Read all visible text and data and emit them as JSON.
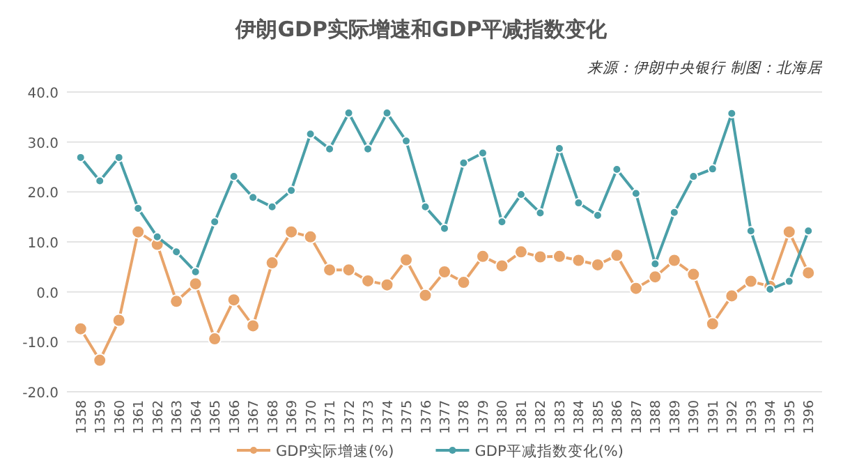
{
  "chart_data": {
    "type": "line",
    "title": "伊朗GDP实际增速和GDP平减指数变化",
    "annotations": [
      "来源：伊朗中央银行  制图：北海居"
    ],
    "categories": [
      "1358",
      "1359",
      "1360",
      "1361",
      "1362",
      "1363",
      "1364",
      "1365",
      "1366",
      "1367",
      "1368",
      "1369",
      "1370",
      "1371",
      "1372",
      "1373",
      "1374",
      "1375",
      "1376",
      "1377",
      "1378",
      "1379",
      "1380",
      "1381",
      "1382",
      "1383",
      "1384",
      "1385",
      "1386",
      "1387",
      "1388",
      "1389",
      "1390",
      "1391",
      "1392",
      "1393",
      "1394",
      "1395",
      "1396"
    ],
    "series": [
      {
        "name": "GDP实际增速(%)",
        "color": "#e8a46a",
        "values": [
          -7.4,
          -13.7,
          -5.7,
          12,
          9.5,
          -1.9,
          1.6,
          -9.4,
          -1.6,
          -6.8,
          5.8,
          12,
          11,
          4.4,
          4.4,
          2.2,
          1.4,
          6.4,
          -0.7,
          4.0,
          1.9,
          7.1,
          5.2,
          8,
          7,
          7.1,
          6.3,
          5.4,
          7.3,
          0.7,
          3.0,
          6.3,
          3.5,
          -6.4,
          -0.8,
          2.1,
          1.1,
          12.0,
          3.8
        ]
      },
      {
        "name": "GDP平减指数变化(%)",
        "color": "#4a9fa8",
        "values": [
          26.9,
          22.2,
          26.9,
          16.7,
          11,
          8,
          4.0,
          14,
          23.1,
          18.9,
          17.0,
          20.3,
          31.6,
          28.6,
          35.8,
          28.6,
          35.8,
          30.2,
          17.0,
          12.7,
          25.8,
          27.8,
          14,
          19.5,
          15.8,
          28.7,
          17.8,
          15.3,
          24.5,
          19.7,
          5.6,
          15.9,
          23.1,
          24.6,
          35.7,
          12.2,
          0.5,
          2.1,
          12.2
        ]
      }
    ],
    "ylim": [
      -20,
      40
    ],
    "yticks": [
      {
        "value": -20,
        "label": "-20.0"
      },
      {
        "value": -10,
        "label": "-10.0"
      },
      {
        "value": 0,
        "label": "0.0"
      },
      {
        "value": 10,
        "label": "10.0"
      },
      {
        "value": 20,
        "label": "20.0"
      },
      {
        "value": 30,
        "label": "30.0"
      },
      {
        "value": 40,
        "label": "40.0"
      }
    ],
    "grid": "y",
    "legend": "bottom",
    "marker": "circle",
    "line_style": "solid"
  }
}
